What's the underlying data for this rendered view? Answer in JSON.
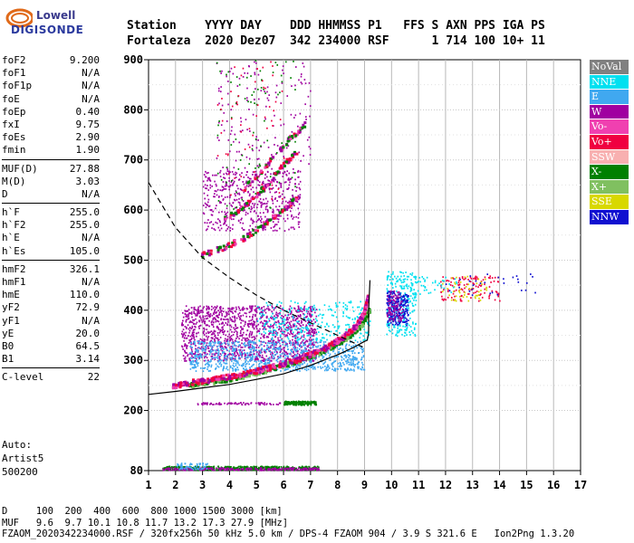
{
  "logo": {
    "line1": "Lowell",
    "line2": "DIGISONDE"
  },
  "header": {
    "line1": "Station    YYYY DAY    DDD HHMMSS P1   FFS S AXN PPS IGA PS",
    "line2": "Fortaleza  2020 Dez07  342 234000 RSF      1 714 100 10+ 11"
  },
  "params": {
    "group1": [
      {
        "label": "foF2",
        "value": "9.200"
      },
      {
        "label": "foF1",
        "value": "N/A"
      },
      {
        "label": "foF1p",
        "value": "N/A"
      },
      {
        "label": "foE",
        "value": "N/A"
      },
      {
        "label": "foEp",
        "value": "0.40"
      },
      {
        "label": "fxI",
        "value": "9.75"
      },
      {
        "label": "foEs",
        "value": "2.90"
      },
      {
        "label": "fmin",
        "value": "1.90"
      }
    ],
    "group2": [
      {
        "label": "MUF(D)",
        "value": "27.88"
      },
      {
        "label": "M(D)",
        "value": "3.03"
      },
      {
        "label": "D",
        "value": "N/A"
      }
    ],
    "group3": [
      {
        "label": "h`F",
        "value": "255.0"
      },
      {
        "label": "h`F2",
        "value": "255.0"
      },
      {
        "label": "h`E",
        "value": "N/A"
      },
      {
        "label": "h`Es",
        "value": "105.0"
      }
    ],
    "group4": [
      {
        "label": "hmF2",
        "value": "326.1"
      },
      {
        "label": "hmF1",
        "value": "N/A"
      },
      {
        "label": "hmE",
        "value": "110.0"
      },
      {
        "label": "yF2",
        "value": "72.9"
      },
      {
        "label": "yF1",
        "value": "N/A"
      },
      {
        "label": "yE",
        "value": "20.0"
      },
      {
        "label": "B0",
        "value": "64.5"
      },
      {
        "label": "B1",
        "value": "3.14"
      }
    ],
    "group5": [
      {
        "label": "C-level",
        "value": "22"
      }
    ]
  },
  "auto": {
    "line1": "Auto:",
    "line2": "Artist5",
    "line3": "500200"
  },
  "legend": [
    {
      "label": "NoVal",
      "color": "#808080"
    },
    {
      "label": "NNE",
      "color": "#00e0f0"
    },
    {
      "label": "E",
      "color": "#40a8f0"
    },
    {
      "label": "W",
      "color": "#a000a0"
    },
    {
      "label": "Vo-",
      "color": "#f040b0"
    },
    {
      "label": "Vo+",
      "color": "#f00040"
    },
    {
      "label": "SSW",
      "color": "#f8b0b0"
    },
    {
      "label": "X-",
      "color": "#008000"
    },
    {
      "label": "X+",
      "color": "#80c060"
    },
    {
      "label": "SSE",
      "color": "#d8d800"
    },
    {
      "label": "NNW",
      "color": "#1010d0"
    }
  ],
  "footer": {
    "line1": "D     100  200  400  600  800 1000 1500 3000 [km]",
    "line2": "MUF   9.6  9.7 10.1 10.8 11.7 13.2 17.3 27.9 [MHz]",
    "line3": "FZAOM_2020342234000.RSF / 320fx256h 50 kHz 5.0 km / DPS-4 FZAOM 904 / 3.9 S 321.6 E   Ion2Png 1.3.20"
  },
  "chart_data": {
    "type": "scatter",
    "xlabel": "",
    "ylabel": "",
    "xlim": [
      1,
      17
    ],
    "ylim": [
      80,
      900
    ],
    "x_ticks": [
      1,
      2,
      3,
      4,
      5,
      6,
      7,
      8,
      9,
      10,
      11,
      12,
      13,
      14,
      15,
      16,
      17
    ],
    "y_ticks": [
      80,
      200,
      300,
      400,
      500,
      600,
      700,
      800,
      900
    ],
    "grid": true,
    "clusters": [
      {
        "name": "Es trace",
        "color": "#008000",
        "x": [
          1.5,
          7.3
        ],
        "h": [
          82,
          90
        ],
        "density": 520
      },
      {
        "name": "Es trace o",
        "color": "#a000a0",
        "x": [
          1.5,
          7.3
        ],
        "h": [
          82,
          87
        ],
        "density": 260
      },
      {
        "name": "Es scatter",
        "color": "#40a8f0",
        "x": [
          2.0,
          3.2
        ],
        "h": [
          84,
          96
        ],
        "density": 60
      },
      {
        "name": "Es echo 2",
        "color": "#008000",
        "x": [
          6.0,
          7.2
        ],
        "h": [
          212,
          220
        ],
        "density": 160
      },
      {
        "name": "Es echo 2b",
        "color": "#a000a0",
        "x": [
          2.8,
          5.9
        ],
        "h": [
          213,
          217
        ],
        "density": 80
      },
      {
        "name": "spread F W",
        "color": "#a000a0",
        "x": [
          2.2,
          7.2
        ],
        "h": [
          300,
          410
        ],
        "density": 1400
      },
      {
        "name": "spread F E",
        "color": "#40a8f0",
        "x": [
          2.5,
          9.0
        ],
        "h": [
          280,
          340
        ],
        "density": 900
      },
      {
        "name": "spread F NNE",
        "color": "#00e0f0",
        "x": [
          5.0,
          9.2
        ],
        "h": [
          340,
          420
        ],
        "density": 300
      },
      {
        "name": "high multihop W",
        "color": "#a000a0",
        "x": [
          3.0,
          6.6
        ],
        "h": [
          560,
          680
        ],
        "density": 500
      },
      {
        "name": "high sparse",
        "color": "#a000a0",
        "x": [
          3.5,
          7.0
        ],
        "h": [
          680,
          900
        ],
        "density": 160
      },
      {
        "name": "high sparse green",
        "color": "#008000",
        "x": [
          3.5,
          6.5
        ],
        "h": [
          600,
          900
        ],
        "density": 90
      },
      {
        "name": "high sparse red",
        "color": "#f00040",
        "x": [
          3.5,
          6.0
        ],
        "h": [
          620,
          900
        ],
        "density": 60
      },
      {
        "name": "beyond foF2 NNE",
        "color": "#00e0f0",
        "x": [
          9.8,
          10.9
        ],
        "h": [
          350,
          480
        ],
        "density": 260
      },
      {
        "name": "beyond foF2 NNW",
        "color": "#1010d0",
        "x": [
          9.8,
          10.6
        ],
        "h": [
          370,
          440
        ],
        "density": 220
      },
      {
        "name": "beyond foF2 W",
        "color": "#a000a0",
        "x": [
          9.8,
          10.4
        ],
        "h": [
          380,
          440
        ],
        "density": 100
      },
      {
        "name": "far Vo+",
        "color": "#f00040",
        "x": [
          11.8,
          14.0
        ],
        "h": [
          420,
          470
        ],
        "density": 120
      },
      {
        "name": "far SSE",
        "color": "#d8d800",
        "x": [
          11.8,
          13.5
        ],
        "h": [
          420,
          470
        ],
        "density": 50
      },
      {
        "name": "far NNW",
        "color": "#1010d0",
        "x": [
          11.8,
          15.5
        ],
        "h": [
          430,
          475
        ],
        "density": 30
      },
      {
        "name": "far NNE",
        "color": "#00e0f0",
        "x": [
          10.8,
          12.5
        ],
        "h": [
          430,
          470
        ],
        "density": 40
      }
    ],
    "o_trace": [
      [
        1.9,
        247
      ],
      [
        2.5,
        255
      ],
      [
        3.5,
        262
      ],
      [
        4.5,
        272
      ],
      [
        5.5,
        285
      ],
      [
        6.5,
        300
      ],
      [
        7.5,
        322
      ],
      [
        8.2,
        345
      ],
      [
        8.7,
        368
      ],
      [
        9.0,
        395
      ],
      [
        9.15,
        430
      ]
    ],
    "x_trace": [
      [
        2.5,
        250
      ],
      [
        3.5,
        258
      ],
      [
        4.5,
        268
      ],
      [
        5.5,
        282
      ],
      [
        6.5,
        298
      ],
      [
        7.5,
        318
      ],
      [
        8.3,
        342
      ],
      [
        8.9,
        370
      ],
      [
        9.2,
        400
      ]
    ],
    "multihop_traces": [
      [
        [
          3.0,
          510
        ],
        [
          3.8,
          525
        ],
        [
          4.6,
          545
        ],
        [
          5.4,
          575
        ],
        [
          6.1,
          605
        ],
        [
          6.5,
          625
        ]
      ],
      [
        [
          3.8,
          580
        ],
        [
          4.6,
          610
        ],
        [
          5.4,
          650
        ],
        [
          6.0,
          690
        ],
        [
          6.5,
          715
        ]
      ],
      [
        [
          4.5,
          640
        ],
        [
          5.4,
          690
        ],
        [
          6.2,
          740
        ],
        [
          6.8,
          770
        ]
      ]
    ],
    "profile_curve": [
      [
        1.0,
        232
      ],
      [
        2.0,
        238
      ],
      [
        3.0,
        245
      ],
      [
        4.0,
        252
      ],
      [
        5.0,
        262
      ],
      [
        6.0,
        273
      ],
      [
        7.0,
        290
      ],
      [
        8.0,
        311
      ],
      [
        8.6,
        326
      ],
      [
        9.0,
        338
      ],
      [
        9.1,
        340
      ],
      [
        9.15,
        355
      ],
      [
        9.15,
        400
      ],
      [
        9.2,
        460
      ]
    ],
    "muf_curve_dashed": [
      [
        1.0,
        655
      ],
      [
        1.5,
        610
      ],
      [
        2.0,
        565
      ],
      [
        3.0,
        505
      ],
      [
        4.0,
        465
      ],
      [
        5.0,
        430
      ],
      [
        6.0,
        400
      ],
      [
        7.0,
        375
      ],
      [
        8.0,
        350
      ],
      [
        8.6,
        335
      ],
      [
        9.0,
        325
      ]
    ]
  }
}
